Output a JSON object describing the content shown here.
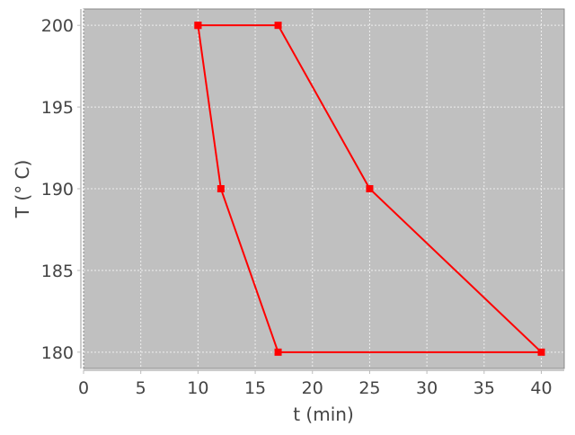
{
  "chart_data": {
    "type": "line",
    "title": "",
    "xlabel": "t (min)",
    "ylabel": "T (° C)",
    "xlim": [
      0,
      42
    ],
    "ylim": [
      179,
      201
    ],
    "xticks": [
      0,
      5,
      10,
      15,
      20,
      25,
      30,
      35,
      40
    ],
    "yticks": [
      180,
      185,
      190,
      195,
      200
    ],
    "grid": true,
    "legend": "none",
    "series": [
      {
        "x": [
          10,
          17,
          25,
          40,
          17,
          12,
          10
        ],
        "y": [
          200,
          200,
          190,
          180,
          180,
          190,
          200
        ],
        "color": "#ff0000",
        "marker": "square"
      }
    ],
    "plot_background": "#c0c0c0"
  }
}
